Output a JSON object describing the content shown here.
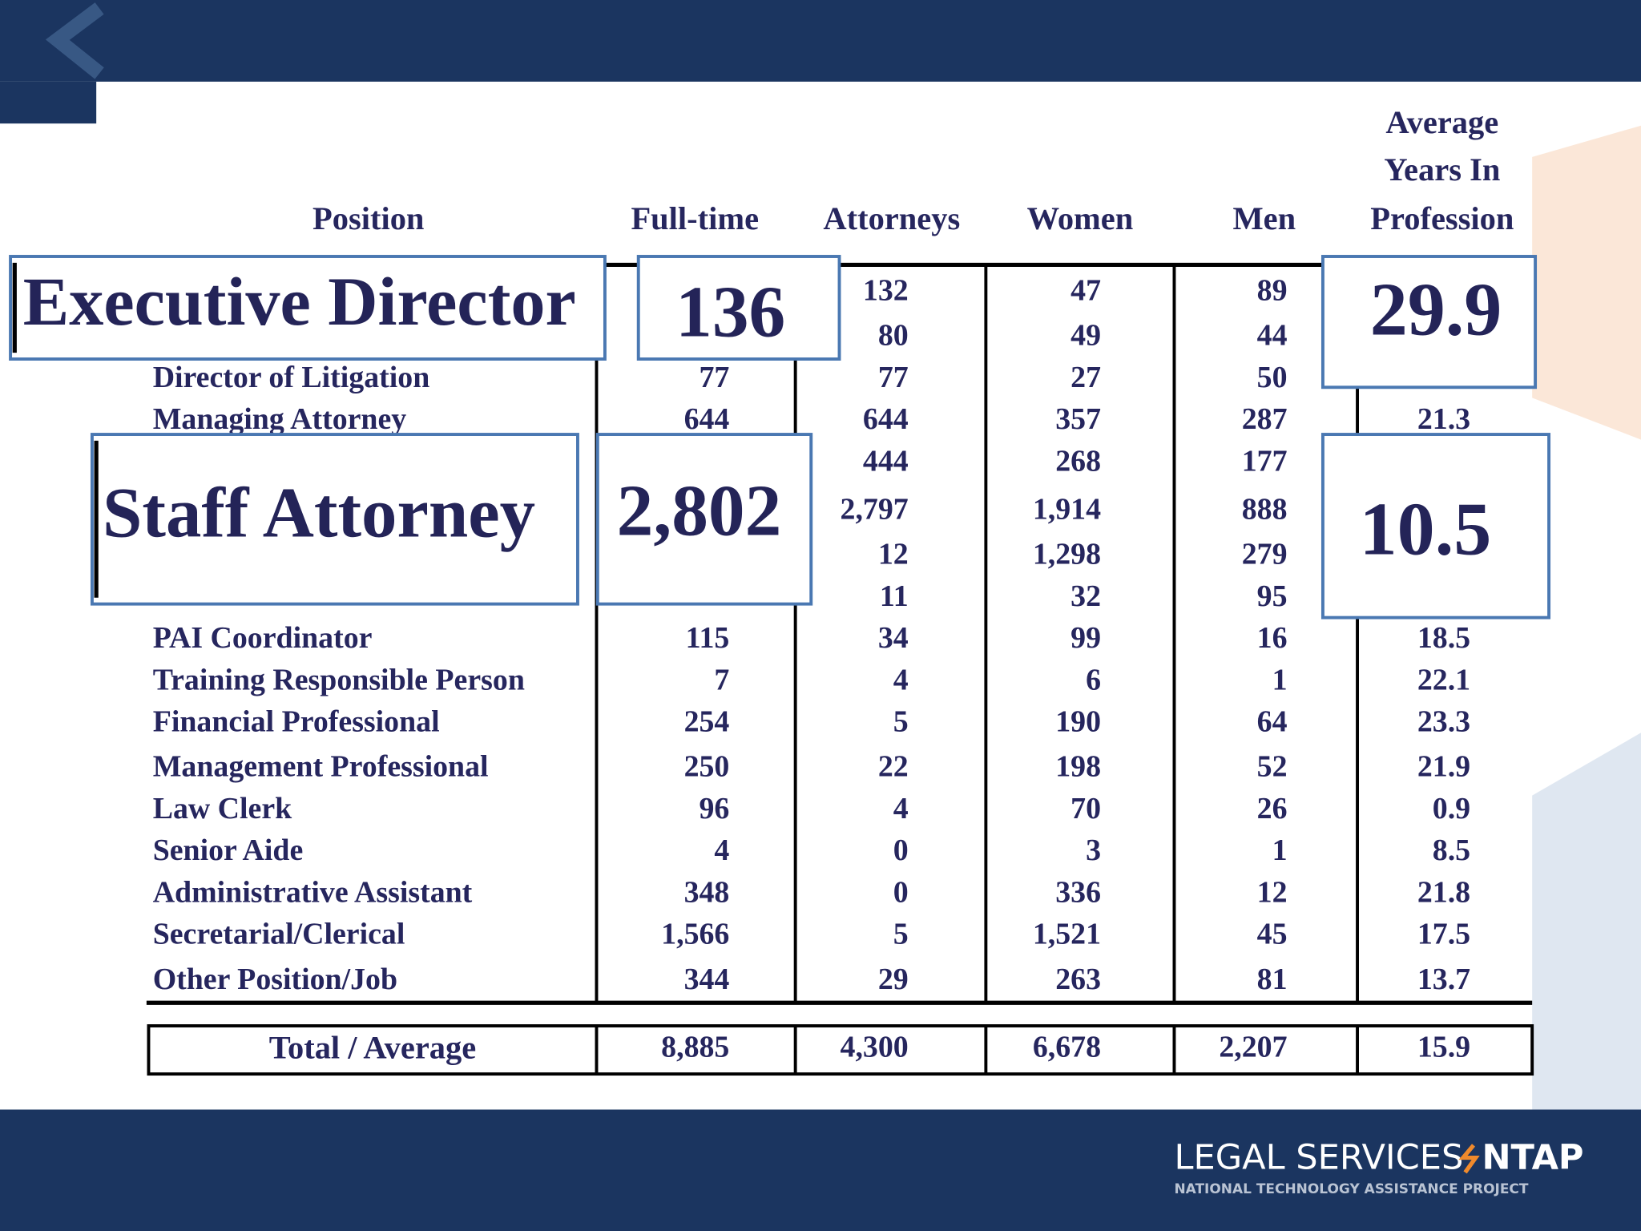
{
  "table": {
    "columns": [
      "Position",
      "Full-time",
      "Attorneys",
      "Women",
      "Men"
    ],
    "last_column_lines": [
      "Average",
      "Years In",
      "Profession"
    ],
    "rows": [
      {
        "label": null,
        "cells": [
          null,
          "132",
          "47",
          "89",
          null
        ]
      },
      {
        "label": null,
        "cells": [
          null,
          "80",
          "49",
          "44",
          null
        ]
      },
      {
        "label": "Director of Litigation",
        "cells": [
          "77",
          "77",
          "27",
          "50",
          null
        ]
      },
      {
        "label": "Managing Attorney",
        "cells": [
          "644",
          "644",
          "357",
          "287",
          "21.3"
        ]
      },
      {
        "label": null,
        "cells": [
          null,
          "444",
          "268",
          "177",
          null
        ]
      },
      {
        "label": null,
        "cells": [
          null,
          "2,797",
          "1,914",
          "888",
          null
        ]
      },
      {
        "label": null,
        "cells": [
          null,
          "12",
          "1,298",
          "279",
          null
        ]
      },
      {
        "label": null,
        "cells": [
          null,
          "11",
          "32",
          "95",
          null
        ]
      },
      {
        "label": "PAI Coordinator",
        "cells": [
          "115",
          "34",
          "99",
          "16",
          "18.5"
        ]
      },
      {
        "label": "Training Responsible Person",
        "cells": [
          "7",
          "4",
          "6",
          "1",
          "22.1"
        ]
      },
      {
        "label": "Financial Professional",
        "cells": [
          "254",
          "5",
          "190",
          "64",
          "23.3"
        ]
      },
      {
        "label": "Management Professional",
        "cells": [
          "250",
          "22",
          "198",
          "52",
          "21.9"
        ]
      },
      {
        "label": "Law Clerk",
        "cells": [
          "96",
          "4",
          "70",
          "26",
          "0.9"
        ]
      },
      {
        "label": "Senior Aide",
        "cells": [
          "4",
          "0",
          "3",
          "1",
          "8.5"
        ]
      },
      {
        "label": "Administrative Assistant",
        "cells": [
          "348",
          "0",
          "336",
          "12",
          "21.8"
        ]
      },
      {
        "label": "Secretarial/Clerical",
        "cells": [
          "1,566",
          "5",
          "1,521",
          "45",
          "17.5"
        ]
      },
      {
        "label": "Other Position/Job",
        "cells": [
          "344",
          "29",
          "263",
          "81",
          "13.7"
        ]
      }
    ],
    "total": {
      "label": "Total / Average",
      "cells": [
        "8,885",
        "4,300",
        "6,678",
        "2,207",
        "15.9"
      ]
    }
  },
  "callouts": [
    "Executive Director",
    "136",
    "29.9",
    "Staff Attorney",
    "2,802",
    "10.5"
  ],
  "footer": {
    "brand": "LEGAL SERVICES",
    "brand_suffix": "NTAP",
    "tagline": "NATIONAL TECHNOLOGY ASSISTANCE PROJECT"
  }
}
